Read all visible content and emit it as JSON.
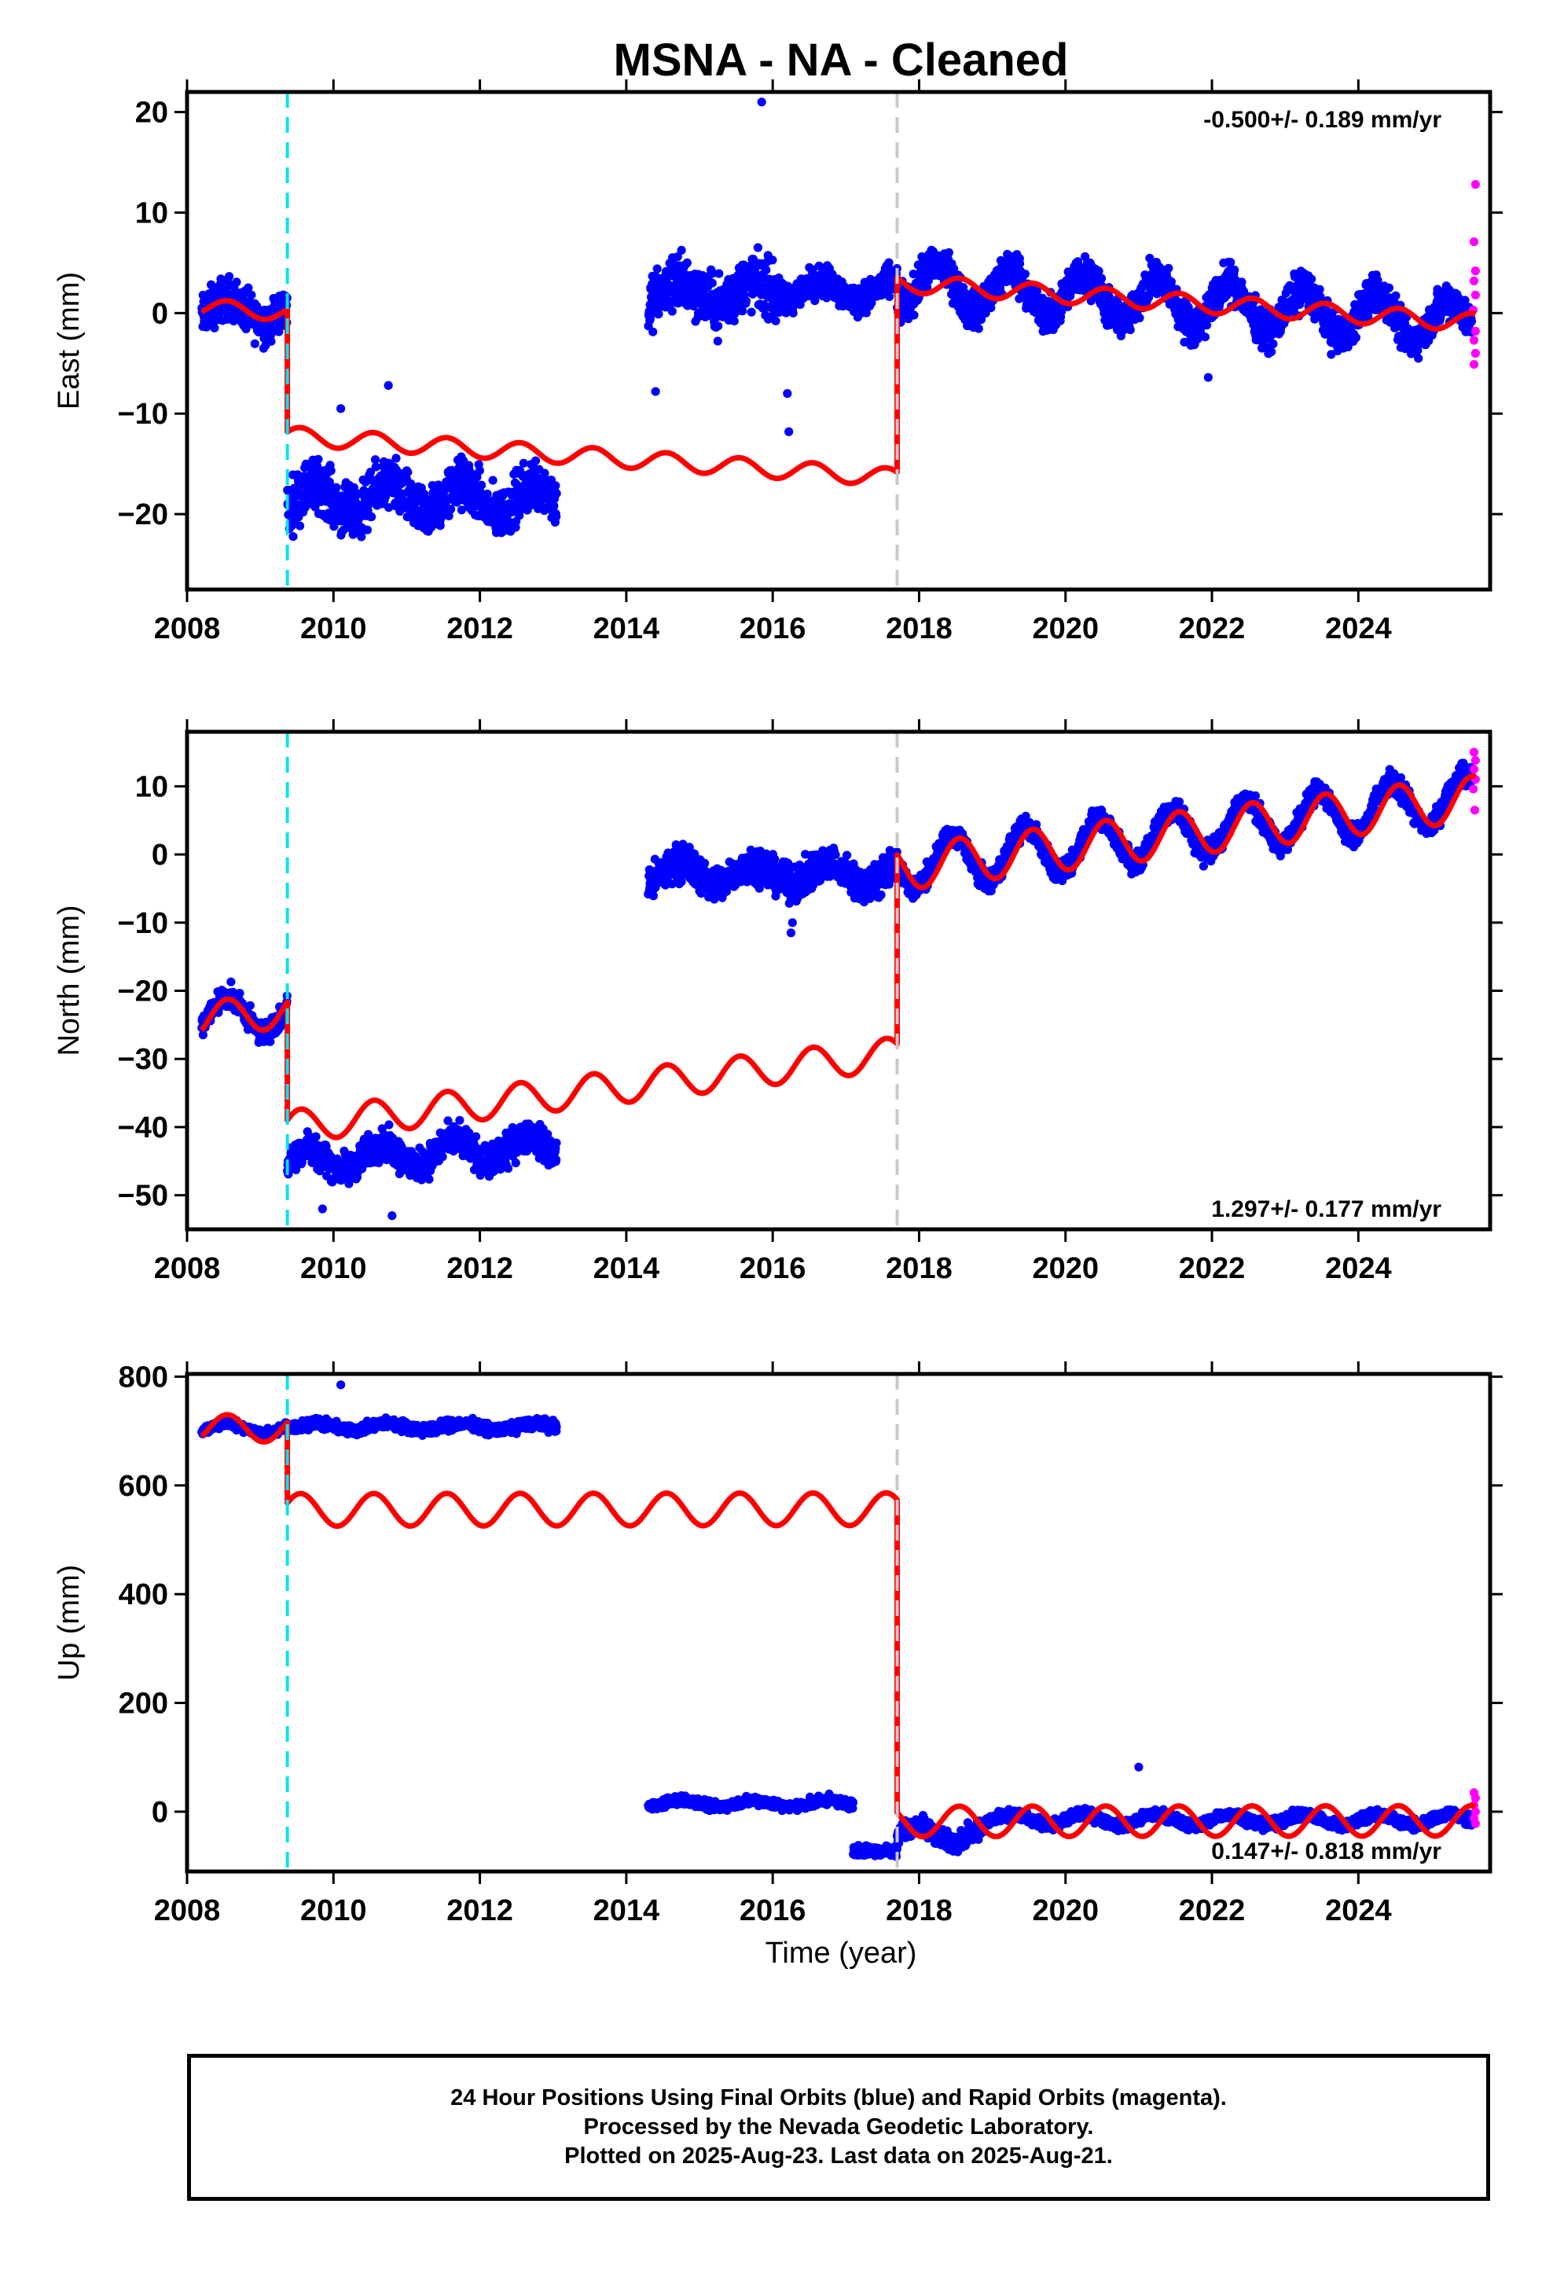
{
  "title": "MSNA  - NA - Cleaned",
  "footer": {
    "line1": "24 Hour Positions Using Final Orbits (blue) and Rapid Orbits (magenta).",
    "line2": "Processed by the Nevada Geodetic Laboratory.",
    "line3": "Plotted on 2025-Aug-23. Last data on 2025-Aug-21."
  },
  "colors": {
    "final_orbits": "#0000ff",
    "rapid_orbits": "#ff00ff",
    "model_fit": "#ff0000",
    "equipment_change_line": "#00e5ee",
    "unknown_offset_line": "#c8c8c8"
  },
  "chart_data": [
    {
      "type": "scatter",
      "panel": "east",
      "title": "MSNA  - NA - Cleaned",
      "xlabel": "",
      "ylabel": "East (mm)",
      "xlim": [
        2008.0,
        2025.8
      ],
      "ylim": [
        -27.5,
        22
      ],
      "xticks": [
        2008,
        2010,
        2012,
        2014,
        2016,
        2018,
        2020,
        2022,
        2024
      ],
      "yticks": [
        -20,
        -10,
        0,
        10,
        20
      ],
      "ytick_labels": [
        "−20",
        "−10",
        "0",
        "10",
        "20"
      ],
      "grid": false,
      "rate_label": "-0.500+/- 0.189 mm/yr",
      "vlines": [
        {
          "x": 2009.37,
          "style": "cyan-dashed"
        },
        {
          "x": 2017.7,
          "style": "gray-dashed"
        }
      ],
      "segments": [
        {
          "x0": 2008.2,
          "x1": 2009.37,
          "level": 0.3,
          "spread": 1.8,
          "amp": 1.2,
          "t0": 2008.3
        },
        {
          "x0": 2009.37,
          "x1": 2013.05,
          "level": -18.5,
          "spread": 2.2,
          "amp": 1.5,
          "t0": 2009.5
        },
        {
          "x0": 2014.3,
          "x1": 2016.1,
          "level": 2.0,
          "spread": 2.4,
          "amp": 1.2,
          "t0": 2014.5
        },
        {
          "x0": 2016.1,
          "x1": 2017.7,
          "level": 2.3,
          "spread": 1.3,
          "amp": 1.0,
          "t0": 2016.4
        },
        {
          "x0": 2017.7,
          "x1": 2025.55,
          "level": 3.0,
          "trend": -0.5,
          "trend_ref": 2017.7,
          "spread": 1.6,
          "amp": 2.2,
          "t0": 2018.0
        }
      ],
      "outliers": [
        [
          2015.85,
          21.0
        ],
        [
          2014.4,
          -7.8
        ],
        [
          2016.22,
          -11.8
        ],
        [
          2016.2,
          -8.0
        ],
        [
          2010.75,
          -7.2
        ],
        [
          2010.1,
          -9.5
        ],
        [
          2021.95,
          -6.4
        ]
      ],
      "rapid_points": [
        [
          2025.6,
          12.8
        ],
        [
          2025.58,
          7.1
        ],
        [
          2025.6,
          4.2
        ],
        [
          2025.58,
          3.2
        ],
        [
          2025.6,
          1.8
        ],
        [
          2025.57,
          0.3
        ],
        [
          2025.6,
          -1.8
        ],
        [
          2025.58,
          -2.7
        ],
        [
          2025.6,
          -4.0
        ],
        [
          2025.58,
          -5.1
        ]
      ],
      "model": {
        "pieces": [
          {
            "x0": 2008.2,
            "x1": 2009.37,
            "a": 0.3,
            "b": -0.5,
            "ref": 2008.8,
            "amp": 0.8
          },
          {
            "x0": 2009.37,
            "x1": 2017.7,
            "a": -12.2,
            "b": -0.5,
            "ref": 2009.37,
            "amp": 0.9
          },
          {
            "x0": 2017.7,
            "x1": 2025.6,
            "a": 3.0,
            "b": -0.5,
            "ref": 2017.7,
            "amp": 0.9
          }
        ]
      }
    },
    {
      "type": "scatter",
      "panel": "north",
      "xlabel": "",
      "ylabel": "North (mm)",
      "xlim": [
        2008.0,
        2025.8
      ],
      "ylim": [
        -55,
        18
      ],
      "xticks": [
        2008,
        2010,
        2012,
        2014,
        2016,
        2018,
        2020,
        2022,
        2024
      ],
      "yticks": [
        -50,
        -40,
        -30,
        -20,
        -10,
        0,
        10
      ],
      "ytick_labels": [
        "−50",
        "−40",
        "−30",
        "−20",
        "−10",
        "0",
        "10"
      ],
      "grid": false,
      "rate_label": "1.297+/- 0.177 mm/yr",
      "vlines": [
        {
          "x": 2009.37,
          "style": "cyan-dashed"
        },
        {
          "x": 2017.7,
          "style": "gray-dashed"
        }
      ],
      "segments": [
        {
          "x0": 2008.2,
          "x1": 2009.37,
          "level": -23.5,
          "spread": 1.4,
          "amp": 2.6,
          "t0": 2008.3
        },
        {
          "x0": 2009.37,
          "x1": 2013.05,
          "level": -45.0,
          "trend": 0.6,
          "trend_ref": 2009.37,
          "spread": 2.0,
          "amp": 1.8,
          "t0": 2009.4
        },
        {
          "x0": 2014.3,
          "x1": 2017.7,
          "level": -2.8,
          "spread": 2.2,
          "amp": 1.5,
          "t0": 2014.5
        },
        {
          "x0": 2017.7,
          "x1": 2025.55,
          "level": -1.8,
          "trend": 1.297,
          "trend_ref": 2017.7,
          "spread": 1.4,
          "amp": 3.5,
          "t0": 2018.2
        }
      ],
      "outliers": [
        [
          2016.25,
          -11.5
        ],
        [
          2016.27,
          -10.0
        ],
        [
          2010.8,
          -53.0
        ],
        [
          2009.85,
          -52.0
        ]
      ],
      "rapid_points": [
        [
          2025.58,
          15.0
        ],
        [
          2025.6,
          13.8
        ],
        [
          2025.58,
          12.5
        ],
        [
          2025.6,
          11.0
        ],
        [
          2025.57,
          9.6
        ],
        [
          2025.59,
          6.5
        ]
      ],
      "model": {
        "pieces": [
          {
            "x0": 2008.2,
            "x1": 2009.37,
            "a": -23.5,
            "b": 1.297,
            "ref": 2008.8,
            "amp": 2.6
          },
          {
            "x0": 2009.37,
            "x1": 2017.7,
            "a": -40.0,
            "b": 1.297,
            "ref": 2009.37,
            "amp": 2.4
          },
          {
            "x0": 2017.7,
            "x1": 2025.6,
            "a": -2.0,
            "b": 1.297,
            "ref": 2017.7,
            "amp": 3.3
          }
        ]
      }
    },
    {
      "type": "scatter",
      "panel": "up",
      "xlabel": "Time (year)",
      "ylabel": "Up (mm)",
      "xlim": [
        2008.0,
        2025.8
      ],
      "ylim": [
        -110,
        805
      ],
      "xticks": [
        2008,
        2010,
        2012,
        2014,
        2016,
        2018,
        2020,
        2022,
        2024
      ],
      "yticks": [
        0,
        200,
        400,
        600,
        800
      ],
      "ytick_labels": [
        "0",
        "200",
        "400",
        "600",
        "800"
      ],
      "grid": false,
      "rate_label": "0.147+/- 0.818 mm/yr",
      "vlines": [
        {
          "x": 2009.37,
          "style": "cyan-dashed"
        },
        {
          "x": 2017.7,
          "style": "gray-dashed"
        }
      ],
      "segments": [
        {
          "x0": 2008.2,
          "x1": 2009.37,
          "level": 705,
          "spread": 7,
          "amp": 10,
          "t0": 2008.3
        },
        {
          "x0": 2009.37,
          "x1": 2013.05,
          "level": 708,
          "spread": 8,
          "amp": 6,
          "t0": 2009.5
        },
        {
          "x0": 2014.3,
          "x1": 2017.1,
          "level": 15,
          "spread": 7,
          "amp": 6,
          "t0": 2014.5
        },
        {
          "x0": 2017.1,
          "x1": 2017.7,
          "level": -72,
          "spread": 8,
          "amp": 0,
          "t0": 2017.1
        },
        {
          "x0": 2017.7,
          "x1": 2018.9,
          "level": -40,
          "spread": 15,
          "amp": 15,
          "t0": 2017.7
        },
        {
          "x0": 2018.9,
          "x1": 2025.55,
          "level": -15,
          "spread": 8,
          "amp": 10,
          "t0": 2019.0
        }
      ],
      "outliers": [
        [
          2010.1,
          785
        ],
        [
          2021.0,
          82
        ]
      ],
      "rapid_points": [
        [
          2025.58,
          35
        ],
        [
          2025.6,
          25
        ],
        [
          2025.58,
          12
        ],
        [
          2025.6,
          0
        ],
        [
          2025.58,
          -12
        ],
        [
          2025.6,
          -22
        ]
      ],
      "model": {
        "pieces": [
          {
            "x0": 2008.2,
            "x1": 2009.37,
            "a": 705,
            "b": 0.147,
            "ref": 2008.8,
            "amp": 25
          },
          {
            "x0": 2009.37,
            "x1": 2017.7,
            "a": 555,
            "b": 0.147,
            "ref": 2009.37,
            "amp": 30
          },
          {
            "x0": 2017.7,
            "x1": 2025.6,
            "a": -18,
            "b": 0.147,
            "ref": 2017.7,
            "amp": 28
          }
        ]
      }
    }
  ]
}
